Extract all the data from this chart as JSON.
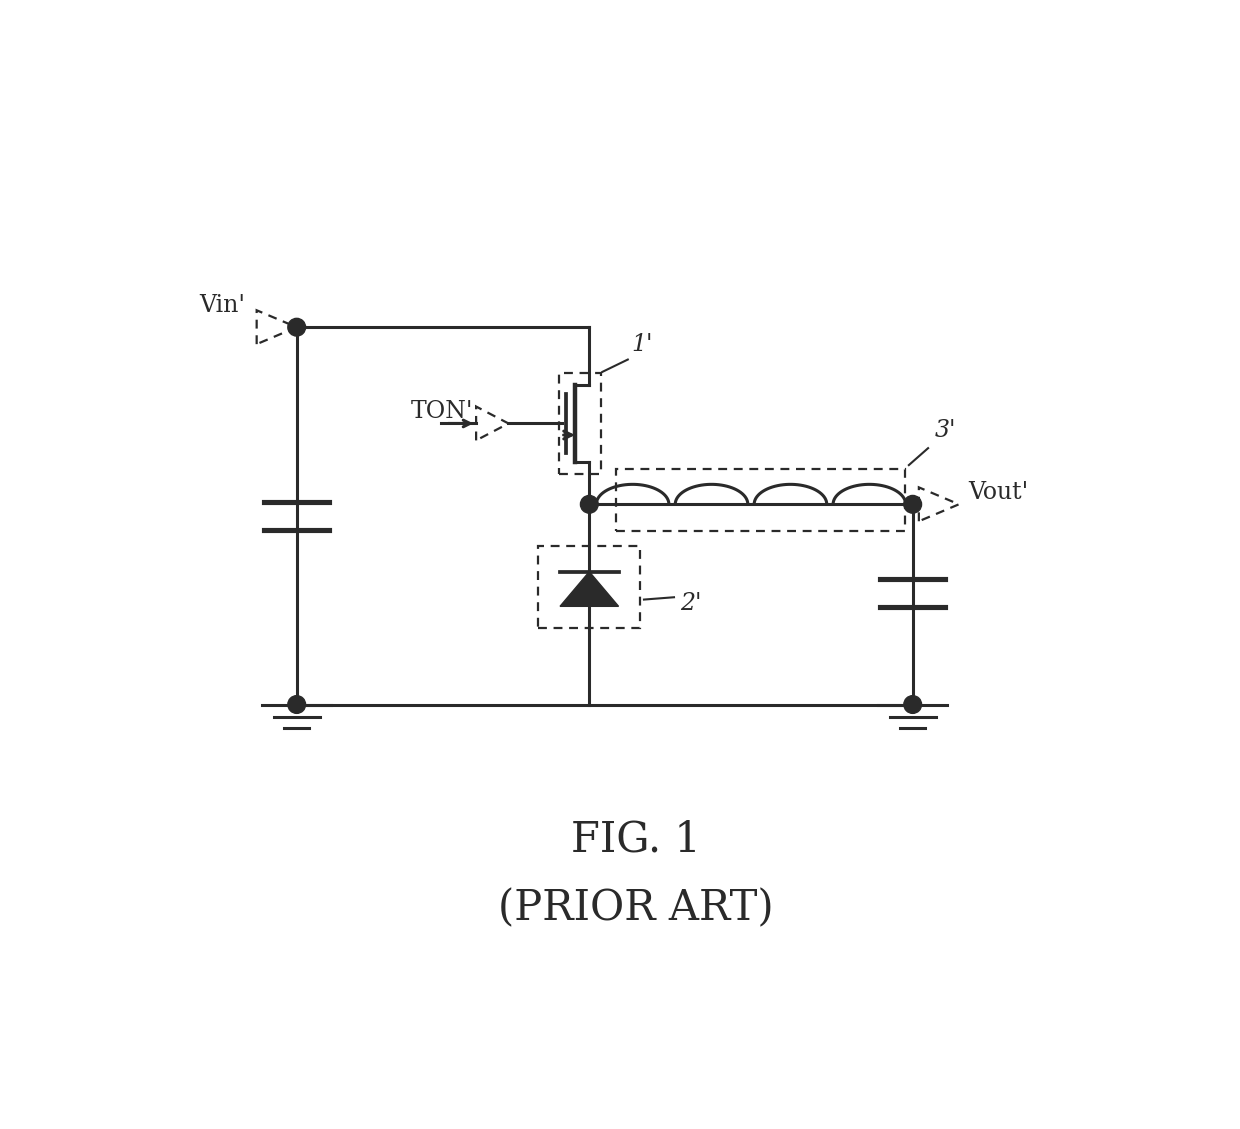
{
  "title": "",
  "fig1_label": "FIG. 1",
  "prior_art_label": "(PRIOR ART)",
  "label_1": "1'",
  "label_2": "2'",
  "label_3": "3'",
  "label_vin": "Vin'",
  "label_vout": "Vout'",
  "label_ton": "TON'",
  "background_color": "#ffffff",
  "line_color": "#2a2a2a",
  "line_width": 2.2,
  "dashed_lw": 1.6
}
